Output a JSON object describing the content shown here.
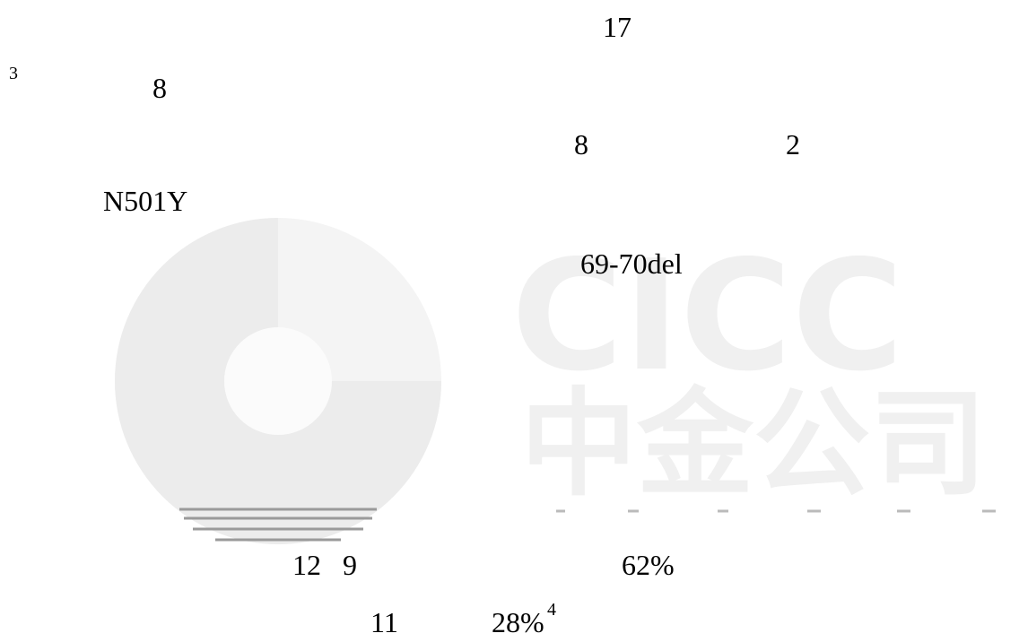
{
  "text": {
    "line1": [
      "17"
    ],
    "line2": [
      "3",
      "8"
    ],
    "line3": [
      "8",
      "2"
    ],
    "line4": [
      "N501Y"
    ],
    "line5": [
      "69-70del"
    ],
    "line6": [
      "12",
      "9",
      "62%"
    ],
    "line7": [
      "11",
      "28%",
      "4"
    ]
  },
  "watermark": {
    "latin": "CICC",
    "chinese": "中金公司"
  }
}
